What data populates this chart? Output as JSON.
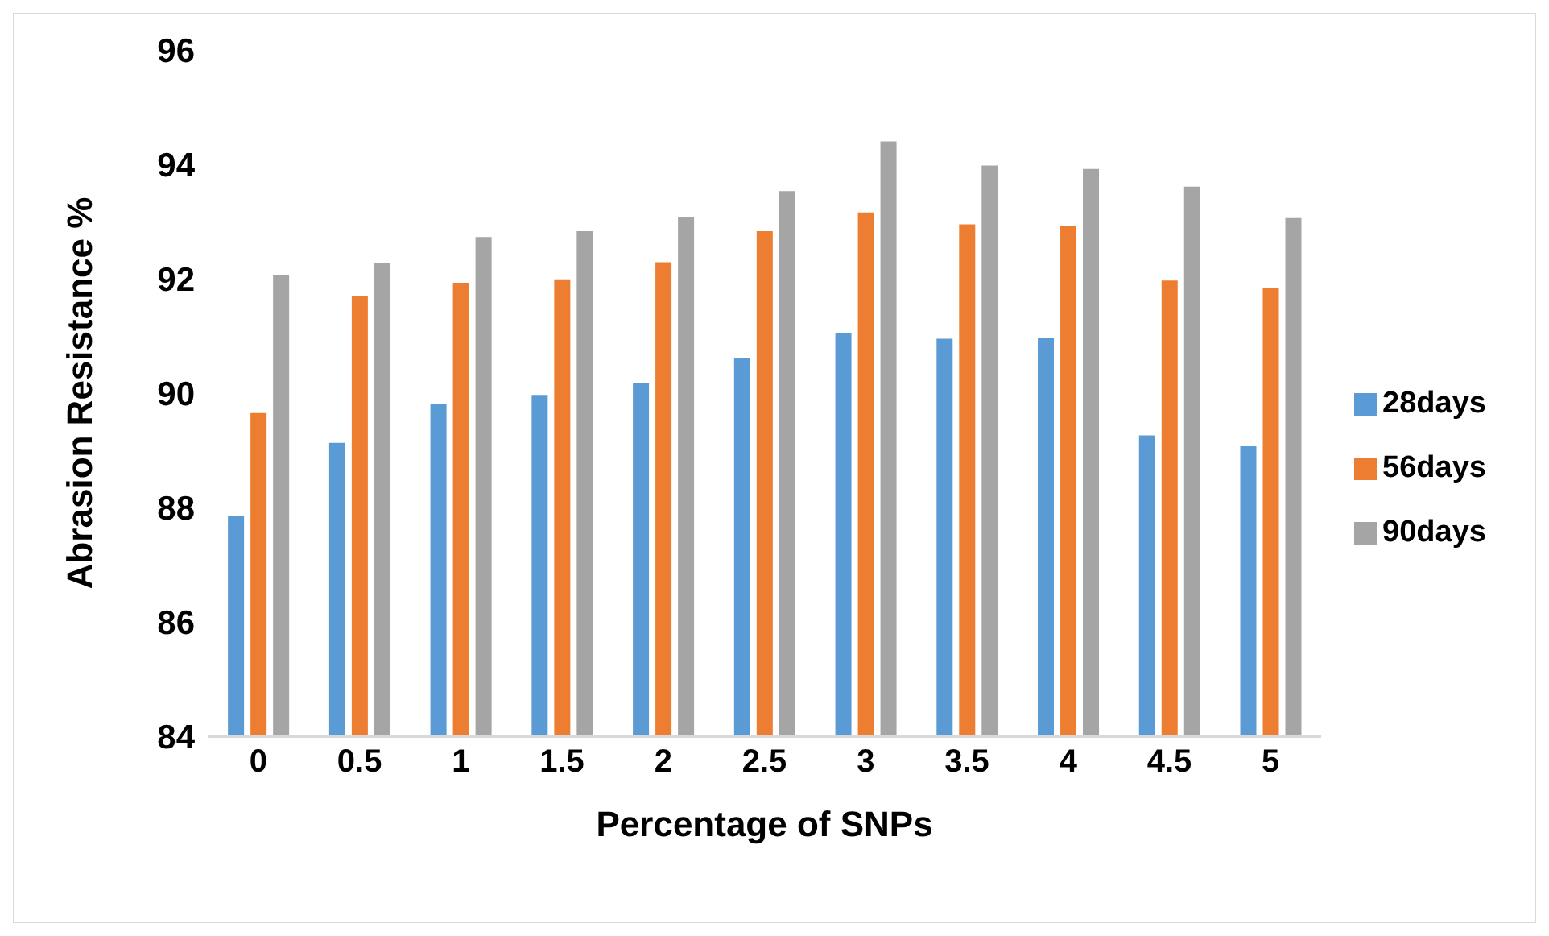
{
  "chart_data": {
    "type": "bar",
    "xlabel": "Percentage of SNPs",
    "ylabel": "Abrasion Resistance %",
    "categories": [
      "0",
      "0.5",
      "1",
      "1.5",
      "2",
      "2.5",
      "3",
      "3.5",
      "4",
      "4.5",
      "5"
    ],
    "series": [
      {
        "name": "28days",
        "color": "#5b9bd5",
        "values": [
          87.85,
          89.13,
          89.81,
          89.97,
          90.17,
          90.62,
          91.05,
          90.95,
          90.96,
          89.26,
          89.07
        ]
      },
      {
        "name": "56days",
        "color": "#ed7d31",
        "values": [
          89.65,
          91.69,
          91.93,
          91.99,
          92.29,
          92.83,
          93.16,
          92.95,
          92.92,
          91.97,
          91.83
        ]
      },
      {
        "name": "90days",
        "color": "#a5a5a5",
        "values": [
          92.06,
          92.27,
          92.73,
          92.83,
          93.08,
          93.53,
          94.4,
          93.98,
          93.92,
          93.61,
          93.06
        ]
      }
    ],
    "ylim": [
      84,
      96
    ],
    "yticks": [
      84,
      86,
      88,
      90,
      92,
      94,
      96
    ],
    "grid": false,
    "legend": "right"
  }
}
